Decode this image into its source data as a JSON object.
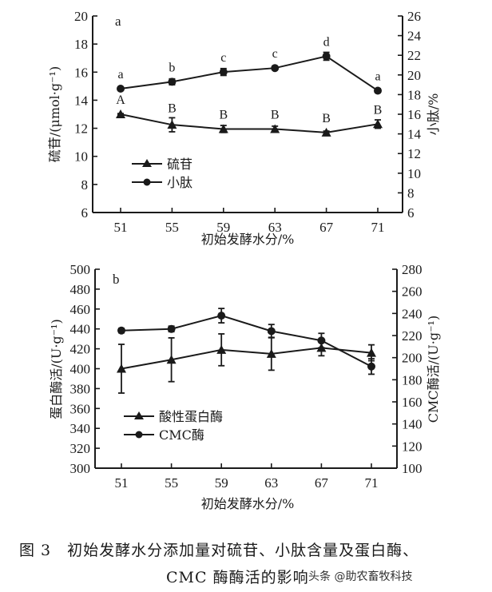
{
  "chart_data": [
    {
      "type": "line",
      "panel_label": "a",
      "x": [
        51,
        55,
        59,
        63,
        67,
        71
      ],
      "xtick_labels": [
        "51",
        "55",
        "59",
        "63",
        "67",
        "71"
      ],
      "xlabel": "初始发酵水分/%",
      "ylabel_left": "硫苷/(μmol·g⁻¹)",
      "ylabel_right": "小肽/%",
      "ylim_left": [
        6,
        20
      ],
      "ylim_right": [
        6,
        26
      ],
      "yticks_left": [
        "6",
        "8",
        "10",
        "12",
        "14",
        "16",
        "18",
        "20"
      ],
      "yticks_right": [
        "6",
        "8",
        "10",
        "12",
        "14",
        "16",
        "18",
        "20",
        "22",
        "24",
        "26"
      ],
      "legend_position": "center-left",
      "series": [
        {
          "name": "硫苷",
          "marker": "triangle",
          "axis": "left",
          "values": [
            13.0,
            12.25,
            11.95,
            11.95,
            11.7,
            12.3
          ],
          "errors": [
            0.05,
            0.5,
            0.25,
            0.2,
            0.1,
            0.3
          ],
          "significance": [
            "A",
            "B",
            "B",
            "B",
            "B",
            "B"
          ]
        },
        {
          "name": "小肽",
          "marker": "circle",
          "axis": "right",
          "values": [
            18.6,
            19.3,
            20.3,
            20.7,
            21.9,
            18.4
          ],
          "errors": [
            0.15,
            0.3,
            0.35,
            0.15,
            0.4,
            0.2
          ],
          "significance": [
            "a",
            "b",
            "c",
            "c",
            "d",
            "a"
          ]
        }
      ]
    },
    {
      "type": "line",
      "panel_label": "b",
      "x": [
        51,
        55,
        59,
        63,
        67,
        71
      ],
      "xtick_labels": [
        "51",
        "55",
        "59",
        "63",
        "67",
        "71"
      ],
      "xlabel": "初始发酵水分/%",
      "ylabel_left": "蛋白酶活/(U·g⁻¹)",
      "ylabel_right": "CMC酶活/(U·g⁻¹)",
      "ylim_left": [
        300,
        500
      ],
      "ylim_right": [
        100,
        280
      ],
      "yticks_left": [
        "300",
        "320",
        "340",
        "360",
        "380",
        "400",
        "420",
        "440",
        "460",
        "480",
        "500"
      ],
      "yticks_right": [
        "100",
        "120",
        "140",
        "160",
        "180",
        "200",
        "220",
        "240",
        "260",
        "280"
      ],
      "legend_position": "center-left",
      "series": [
        {
          "name": "酸性蛋白酶",
          "marker": "triangle",
          "axis": "left",
          "values": [
            400,
            409,
            419,
            415,
            421,
            416
          ],
          "errors": [
            24.5,
            22,
            16,
            16.5,
            8,
            8
          ]
        },
        {
          "name": "CMC酶",
          "marker": "circle",
          "axis": "right",
          "values": [
            224.5,
            226,
            238,
            224,
            215.5,
            192
          ],
          "errors": [
            2,
            2.5,
            6.5,
            6,
            6.5,
            7
          ]
        }
      ]
    }
  ],
  "caption": {
    "line1": "图 3　初始发酵水分添加量对硫苷、小肽含量及蛋白酶、",
    "line2": "CMC 酶酶活的影响"
  },
  "watermark": "头条 @助农畜牧科技"
}
